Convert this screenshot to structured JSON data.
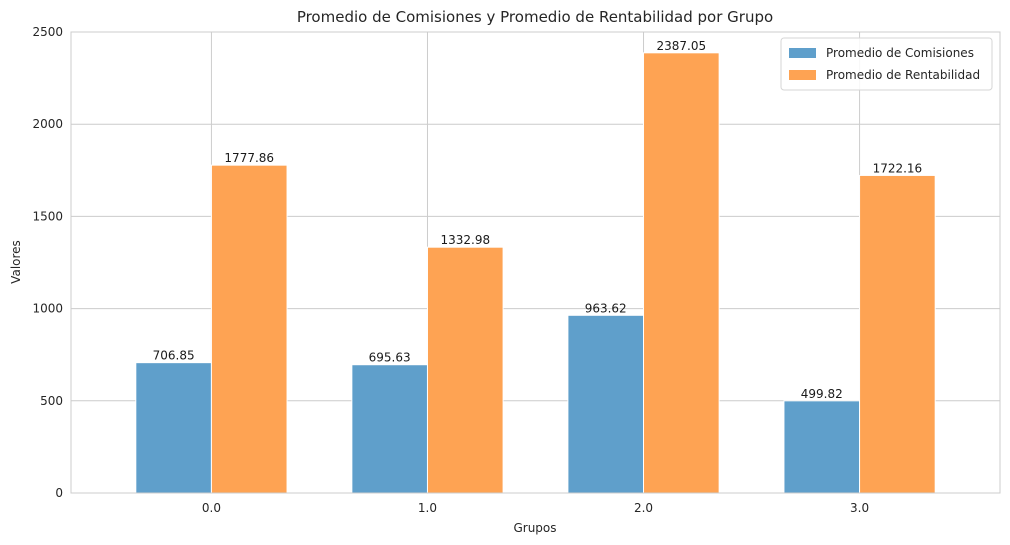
{
  "chart_data": {
    "type": "bar",
    "title": "Promedio de Comisiones y Promedio de Rentabilidad por Grupo",
    "xlabel": "Grupos",
    "ylabel": "Valores",
    "categories": [
      "0.0",
      "1.0",
      "2.0",
      "3.0"
    ],
    "series": [
      {
        "name": "Promedio de Comisiones",
        "color": "#5f9fcb",
        "values": [
          706.85,
          695.63,
          963.62,
          499.82
        ],
        "labels": [
          "706.85",
          "695.63",
          "963.62",
          "499.82"
        ]
      },
      {
        "name": "Promedio de Rentabilidad",
        "color": "#fea353",
        "values": [
          1777.86,
          1332.98,
          2387.05,
          1722.16
        ],
        "labels": [
          "1777.86",
          "1332.98",
          "2387.05",
          "1722.16"
        ]
      }
    ],
    "ylim": [
      0,
      2500
    ],
    "yticks": [
      0,
      500,
      1000,
      1500,
      2000,
      2500
    ],
    "ytick_labels": [
      "0",
      "500",
      "1000",
      "1500",
      "2000",
      "2500"
    ],
    "grid": true,
    "legend_position": "top-right"
  }
}
